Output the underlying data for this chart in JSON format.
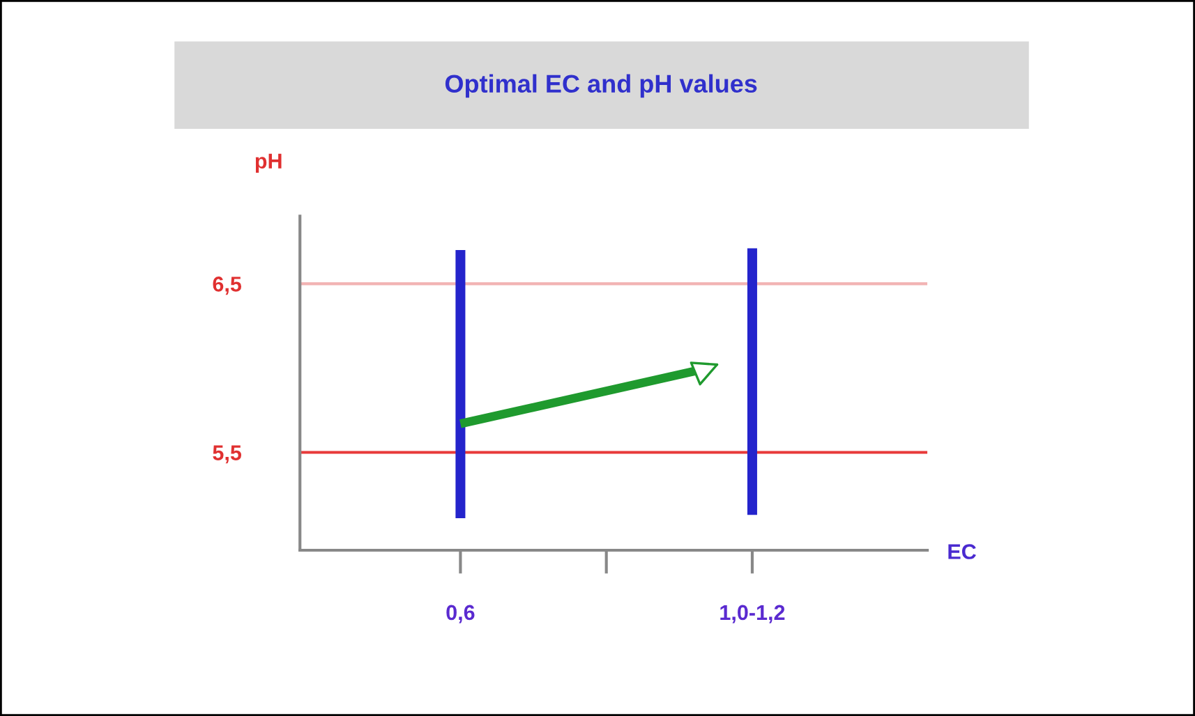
{
  "chart_data": {
    "type": "bar",
    "title": "Optimal EC and pH values",
    "xlabel": "EC",
    "ylabel": "pH",
    "categories": [
      "0,6",
      null,
      "1,0-1,2"
    ],
    "ylim": [
      4.92,
      6.9
    ],
    "yticks": [
      {
        "value": 5.5,
        "label": "5,5"
      },
      {
        "value": 6.5,
        "label": "6,5"
      }
    ],
    "ref_lines": [
      {
        "axis": "y",
        "value": 6.5,
        "color": "#f2b3b3"
      },
      {
        "axis": "y",
        "value": 5.5,
        "color": "#e83a3a"
      }
    ],
    "series": [
      {
        "color": "#2424cc",
        "base": [
          5.11,
          null,
          5.13
        ],
        "values": [
          1.59,
          null,
          1.58
        ]
      }
    ],
    "grid": false,
    "legend": false
  }
}
